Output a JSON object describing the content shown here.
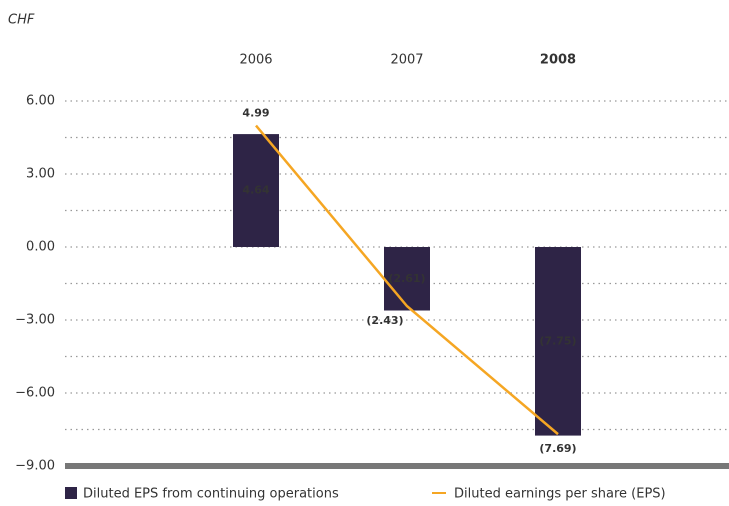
{
  "chart_data": {
    "type": "bar_line",
    "unit_label": "CHF",
    "categories": [
      "2006",
      "2007",
      "2008"
    ],
    "category_label_colors": [
      "#333333",
      "#333333",
      "#f39c1f"
    ],
    "series": [
      {
        "name": "Diluted EPS from continuing operations",
        "type": "bar",
        "color": "#2e2446",
        "values": [
          4.64,
          -2.61,
          -7.75
        ],
        "value_labels": [
          "4.64",
          "(2.61)",
          "(7.75)"
        ]
      },
      {
        "name": "Diluted earnings per share (EPS)",
        "type": "line",
        "color": "#f5a623",
        "values": [
          4.99,
          -2.43,
          -7.69
        ],
        "value_labels": [
          "4.99",
          "(2.43)",
          "(7.69)"
        ]
      }
    ],
    "ylim": [
      -9,
      6
    ],
    "yticks": [
      {
        "value": 6,
        "label": "6.00"
      },
      {
        "value": 3,
        "label": "3.00"
      },
      {
        "value": 0,
        "label": "0.00"
      },
      {
        "value": -3,
        "label": "−3.00"
      },
      {
        "value": -6,
        "label": "−6.00"
      },
      {
        "value": -9,
        "label": "−9.00"
      }
    ],
    "minor_yticks": [
      4.5,
      1.5,
      -1.5,
      -4.5,
      -7.5
    ],
    "grid": true
  }
}
